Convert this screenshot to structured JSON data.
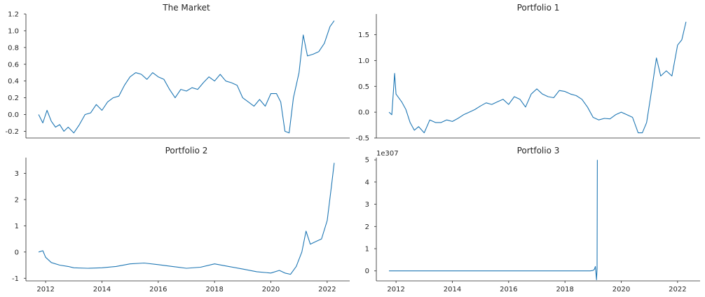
{
  "chart_data": [
    {
      "type": "line",
      "title": "The Market",
      "xlabel": "",
      "ylabel": "",
      "xlim": [
        2011.3,
        2022.8
      ],
      "ylim": [
        -0.28,
        1.2
      ],
      "yticks": [
        "-0.2",
        "0.0",
        "0.2",
        "0.4",
        "0.6",
        "0.8",
        "1.0",
        "1.2"
      ],
      "ytick_values": [
        -0.2,
        0.0,
        0.2,
        0.4,
        0.6,
        0.8,
        1.0,
        1.2
      ],
      "xticks_visible": false,
      "series": [
        {
          "color": "#1f77b4",
          "x": [
            2011.75,
            2011.9,
            2012.05,
            2012.2,
            2012.35,
            2012.5,
            2012.65,
            2012.8,
            2013.0,
            2013.2,
            2013.4,
            2013.6,
            2013.8,
            2014.0,
            2014.2,
            2014.4,
            2014.6,
            2014.8,
            2015.0,
            2015.2,
            2015.4,
            2015.6,
            2015.8,
            2016.0,
            2016.2,
            2016.4,
            2016.6,
            2016.8,
            2017.0,
            2017.2,
            2017.4,
            2017.6,
            2017.8,
            2018.0,
            2018.2,
            2018.4,
            2018.6,
            2018.8,
            2019.0,
            2019.2,
            2019.4,
            2019.6,
            2019.8,
            2020.0,
            2020.2,
            2020.35,
            2020.5,
            2020.65,
            2020.8,
            2021.0,
            2021.15,
            2021.3,
            2021.5,
            2021.7,
            2021.9,
            2022.1,
            2022.25
          ],
          "y": [
            0.0,
            -0.1,
            0.05,
            -0.08,
            -0.15,
            -0.12,
            -0.2,
            -0.15,
            -0.22,
            -0.12,
            0.0,
            0.02,
            0.12,
            0.05,
            0.15,
            0.2,
            0.22,
            0.35,
            0.45,
            0.5,
            0.48,
            0.42,
            0.5,
            0.45,
            0.42,
            0.3,
            0.2,
            0.3,
            0.28,
            0.32,
            0.3,
            0.38,
            0.45,
            0.4,
            0.48,
            0.4,
            0.38,
            0.35,
            0.2,
            0.15,
            0.1,
            0.18,
            0.1,
            0.25,
            0.25,
            0.15,
            -0.2,
            -0.22,
            0.2,
            0.5,
            0.95,
            0.7,
            0.72,
            0.75,
            0.85,
            1.05,
            1.12
          ]
        }
      ]
    },
    {
      "type": "line",
      "title": "Portfolio 1",
      "xlabel": "",
      "ylabel": "",
      "xlim": [
        2011.3,
        2022.8
      ],
      "ylim": [
        -0.5,
        1.9
      ],
      "yticks": [
        "-0.5",
        "0.0",
        "0.5",
        "1.0",
        "1.5"
      ],
      "ytick_values": [
        -0.5,
        0.0,
        0.5,
        1.0,
        1.5
      ],
      "xticks_visible": false,
      "series": [
        {
          "color": "#1f77b4",
          "x": [
            2011.75,
            2011.85,
            2011.95,
            2012.0,
            2012.2,
            2012.35,
            2012.5,
            2012.65,
            2012.8,
            2013.0,
            2013.2,
            2013.4,
            2013.6,
            2013.8,
            2014.0,
            2014.2,
            2014.4,
            2014.6,
            2014.8,
            2015.0,
            2015.2,
            2015.4,
            2015.6,
            2015.8,
            2016.0,
            2016.2,
            2016.4,
            2016.6,
            2016.8,
            2017.0,
            2017.2,
            2017.4,
            2017.6,
            2017.8,
            2018.0,
            2018.2,
            2018.4,
            2018.6,
            2018.8,
            2019.0,
            2019.2,
            2019.4,
            2019.6,
            2019.8,
            2020.0,
            2020.2,
            2020.4,
            2020.6,
            2020.75,
            2020.9,
            2021.1,
            2021.25,
            2021.4,
            2021.6,
            2021.8,
            2022.0,
            2022.15,
            2022.3
          ],
          "y": [
            0.0,
            -0.05,
            0.75,
            0.35,
            0.2,
            0.05,
            -0.2,
            -0.35,
            -0.28,
            -0.4,
            -0.15,
            -0.2,
            -0.2,
            -0.15,
            -0.18,
            -0.12,
            -0.05,
            0.0,
            0.05,
            0.12,
            0.18,
            0.15,
            0.2,
            0.25,
            0.15,
            0.3,
            0.25,
            0.1,
            0.35,
            0.45,
            0.35,
            0.3,
            0.28,
            0.42,
            0.4,
            0.35,
            0.32,
            0.25,
            0.1,
            -0.1,
            -0.15,
            -0.12,
            -0.13,
            -0.05,
            0.0,
            -0.05,
            -0.1,
            -0.4,
            -0.4,
            -0.2,
            0.5,
            1.05,
            0.7,
            0.8,
            0.7,
            1.3,
            1.4,
            1.75
          ]
        }
      ]
    },
    {
      "type": "line",
      "title": "Portfolio 2",
      "xlabel": "",
      "ylabel": "",
      "xlim": [
        2011.3,
        2022.8
      ],
      "ylim": [
        -1.1,
        3.6
      ],
      "yticks": [
        "-1",
        "0",
        "1",
        "2",
        "3"
      ],
      "ytick_values": [
        -1,
        0,
        1,
        2,
        3
      ],
      "xticks": [
        "2012",
        "2014",
        "2016",
        "2018",
        "2020",
        "2022"
      ],
      "xtick_values": [
        2012,
        2014,
        2016,
        2018,
        2020,
        2022
      ],
      "series": [
        {
          "color": "#1f77b4",
          "x": [
            2011.75,
            2011.9,
            2012.0,
            2012.2,
            2012.5,
            2012.8,
            2013.0,
            2013.5,
            2014.0,
            2014.5,
            2015.0,
            2015.5,
            2016.0,
            2016.5,
            2017.0,
            2017.5,
            2018.0,
            2018.5,
            2019.0,
            2019.5,
            2020.0,
            2020.3,
            2020.5,
            2020.7,
            2020.9,
            2021.1,
            2021.25,
            2021.4,
            2021.6,
            2021.8,
            2022.0,
            2022.15,
            2022.25
          ],
          "y": [
            0.0,
            0.05,
            -0.2,
            -0.4,
            -0.5,
            -0.55,
            -0.6,
            -0.62,
            -0.6,
            -0.55,
            -0.45,
            -0.42,
            -0.48,
            -0.55,
            -0.62,
            -0.58,
            -0.45,
            -0.55,
            -0.65,
            -0.75,
            -0.8,
            -0.7,
            -0.8,
            -0.85,
            -0.55,
            0.0,
            0.8,
            0.3,
            0.4,
            0.5,
            1.2,
            2.5,
            3.4
          ]
        }
      ]
    },
    {
      "type": "line",
      "title": "Portfolio 3",
      "xlabel": "",
      "ylabel": "",
      "offset_text": "1e307",
      "xlim": [
        2011.3,
        2022.8
      ],
      "ylim": [
        -0.45,
        5.1
      ],
      "yticks": [
        "0",
        "1",
        "2",
        "3",
        "4",
        "5"
      ],
      "ytick_values": [
        0,
        1,
        2,
        3,
        4,
        5
      ],
      "xticks": [
        "2012",
        "2014",
        "2016",
        "2018",
        "2020",
        "2022"
      ],
      "xtick_values": [
        2012,
        2014,
        2016,
        2018,
        2020,
        2022
      ],
      "series": [
        {
          "color": "#1f77b4",
          "x": [
            2011.75,
            2015.0,
            2018.9,
            2019.0,
            2019.05,
            2019.08,
            2019.12,
            2019.14,
            2019.15
          ],
          "y": [
            0.0,
            0.0,
            0.0,
            0.02,
            0.08,
            0.2,
            -0.4,
            0.1,
            5.0
          ]
        }
      ]
    }
  ]
}
